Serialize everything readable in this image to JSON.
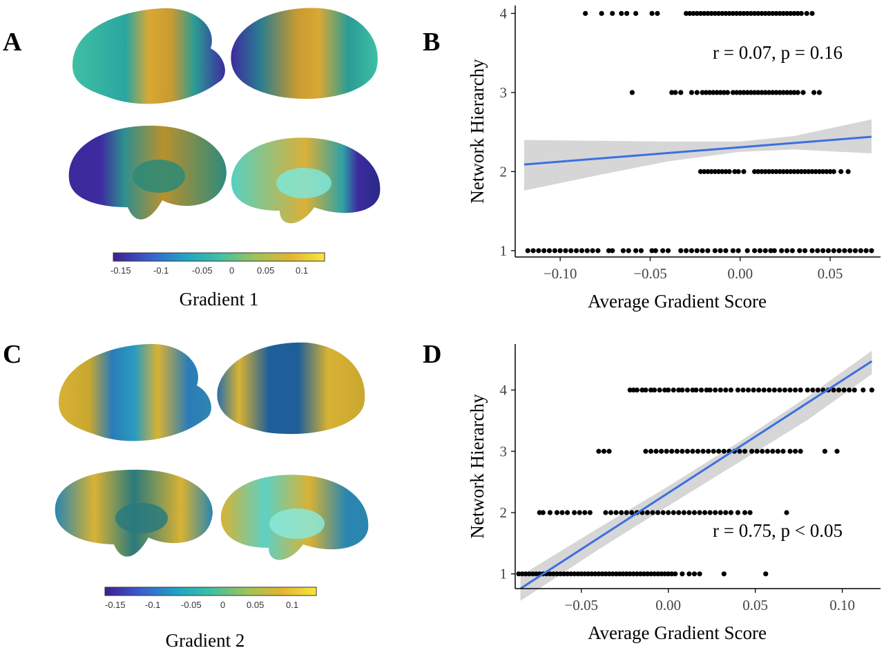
{
  "panels": {
    "A": {
      "label": "A"
    },
    "B": {
      "label": "B"
    },
    "C": {
      "label": "C"
    },
    "D": {
      "label": "D"
    }
  },
  "gradient1": {
    "title": "Gradient 1",
    "colorbar_ticks": [
      "-0.15",
      "-0.1",
      "-0.05",
      "0",
      "0.05",
      "0.1"
    ]
  },
  "gradient2": {
    "title": "Gradient 2",
    "colorbar_ticks": [
      "-0.15",
      "-0.1",
      "-0.05",
      "0",
      "0.05",
      "0.1"
    ]
  },
  "colors": {
    "points": "#000000",
    "fit_line": "#3b6fe0",
    "ci_band": "#cfcfcf",
    "viridis": [
      "#3e1f8f",
      "#3a5fcf",
      "#21a3c4",
      "#3fbfa5",
      "#9cc35a",
      "#e3b534",
      "#f6e83b"
    ]
  },
  "chart_data": [
    {
      "id": "B",
      "type": "scatter",
      "xlabel": "Average Gradient Score",
      "ylabel": "Network Hierarchy",
      "annotation": "r = 0.07, p = 0.16",
      "xlim": [
        -0.125,
        0.078
      ],
      "ylim": [
        0.92,
        4.1
      ],
      "xticks": [
        -0.1,
        -0.05,
        0.0,
        0.05
      ],
      "xtick_labels": [
        "−0.10",
        "−0.05",
        "0.00",
        "0.05"
      ],
      "yticks": [
        1,
        2,
        3,
        4
      ],
      "ytick_labels": [
        "1",
        "2",
        "3",
        "4"
      ],
      "grid": false,
      "fit": {
        "x": [
          -0.12,
          0.073
        ],
        "y": [
          2.09,
          2.44
        ]
      },
      "ci": {
        "x": [
          -0.12,
          -0.08,
          -0.04,
          0.0,
          0.03,
          0.073
        ],
        "upper": [
          2.4,
          2.39,
          2.38,
          2.38,
          2.45,
          2.66
        ],
        "lower": [
          1.76,
          1.95,
          2.13,
          2.25,
          2.28,
          2.23
        ]
      },
      "series": [
        {
          "y": 4,
          "x": [
            -0.086,
            -0.077,
            -0.071,
            -0.066,
            -0.063,
            -0.058,
            -0.049,
            -0.046,
            -0.03,
            -0.028,
            -0.026,
            -0.024,
            -0.022,
            -0.02,
            -0.018,
            -0.016,
            -0.014,
            -0.012,
            -0.01,
            -0.008,
            -0.006,
            -0.004,
            -0.002,
            0.0,
            0.002,
            0.004,
            0.006,
            0.008,
            0.01,
            0.012,
            0.014,
            0.016,
            0.018,
            0.02,
            0.022,
            0.024,
            0.026,
            0.028,
            0.03,
            0.032,
            0.034,
            0.037,
            0.04
          ]
        },
        {
          "y": 3,
          "x": [
            -0.06,
            -0.038,
            -0.036,
            -0.033,
            -0.027,
            -0.024,
            -0.021,
            -0.019,
            -0.017,
            -0.015,
            -0.013,
            -0.011,
            -0.009,
            -0.007,
            -0.004,
            -0.002,
            0.0,
            0.002,
            0.004,
            0.006,
            0.008,
            0.01,
            0.012,
            0.014,
            0.016,
            0.018,
            0.02,
            0.022,
            0.024,
            0.026,
            0.028,
            0.03,
            0.032,
            0.035,
            0.041,
            0.044
          ]
        },
        {
          "y": 2,
          "x": [
            -0.022,
            -0.02,
            -0.018,
            -0.016,
            -0.014,
            -0.012,
            -0.01,
            -0.008,
            -0.006,
            -0.003,
            -0.001,
            0.002,
            0.008,
            0.01,
            0.012,
            0.014,
            0.016,
            0.018,
            0.02,
            0.022,
            0.024,
            0.026,
            0.028,
            0.03,
            0.032,
            0.034,
            0.036,
            0.038,
            0.04,
            0.042,
            0.044,
            0.046,
            0.048,
            0.05,
            0.052,
            0.056,
            0.06
          ]
        },
        {
          "y": 1,
          "x": [
            -0.118,
            -0.115,
            -0.112,
            -0.109,
            -0.106,
            -0.103,
            -0.1,
            -0.097,
            -0.094,
            -0.091,
            -0.088,
            -0.085,
            -0.082,
            -0.079,
            -0.073,
            -0.071,
            -0.065,
            -0.062,
            -0.058,
            -0.055,
            -0.049,
            -0.047,
            -0.043,
            -0.04,
            -0.033,
            -0.03,
            -0.027,
            -0.024,
            -0.021,
            -0.018,
            -0.014,
            -0.011,
            -0.008,
            -0.004,
            -0.001,
            0.004,
            0.008,
            0.011,
            0.014,
            0.017,
            0.019,
            0.023,
            0.026,
            0.029,
            0.033,
            0.036,
            0.04,
            0.043,
            0.046,
            0.049,
            0.052,
            0.055,
            0.058,
            0.061,
            0.064,
            0.067,
            0.07,
            0.073
          ]
        }
      ]
    },
    {
      "id": "D",
      "type": "scatter",
      "xlabel": "Average Gradient Score",
      "ylabel": "Network Hierarchy",
      "annotation": "r = 0.75, p  < 0.05",
      "xlim": [
        -0.088,
        0.122
      ],
      "ylim": [
        0.76,
        4.75
      ],
      "xticks": [
        -0.05,
        0.0,
        0.05,
        0.1
      ],
      "xtick_labels": [
        "−0.05",
        "0.00",
        "0.05",
        "0.10"
      ],
      "yticks": [
        1,
        2,
        3,
        4
      ],
      "ytick_labels": [
        "1",
        "2",
        "3",
        "4"
      ],
      "grid": false,
      "fit": {
        "x": [
          -0.085,
          0.117
        ],
        "y": [
          0.76,
          4.47
        ]
      },
      "ci": {
        "x": [
          -0.085,
          -0.04,
          0.0,
          0.04,
          0.08,
          0.117
        ],
        "upper": [
          0.97,
          1.75,
          2.43,
          3.14,
          3.89,
          4.64
        ],
        "lower": [
          0.56,
          1.4,
          2.11,
          2.81,
          3.51,
          4.26
        ]
      },
      "series": [
        {
          "y": 4,
          "x": [
            -0.022,
            -0.02,
            -0.018,
            -0.015,
            -0.013,
            -0.01,
            -0.008,
            -0.005,
            -0.002,
            0.0,
            0.003,
            0.006,
            0.008,
            0.011,
            0.014,
            0.016,
            0.019,
            0.022,
            0.024,
            0.027,
            0.03,
            0.033,
            0.036,
            0.04,
            0.043,
            0.046,
            0.049,
            0.052,
            0.055,
            0.058,
            0.061,
            0.064,
            0.067,
            0.07,
            0.073,
            0.076,
            0.08,
            0.083,
            0.086,
            0.089,
            0.092,
            0.095,
            0.098,
            0.101,
            0.104,
            0.107,
            0.112,
            0.117
          ]
        },
        {
          "y": 3,
          "x": [
            -0.04,
            -0.037,
            -0.034,
            -0.013,
            -0.01,
            -0.007,
            -0.004,
            -0.001,
            0.002,
            0.005,
            0.008,
            0.011,
            0.014,
            0.017,
            0.02,
            0.023,
            0.026,
            0.029,
            0.032,
            0.035,
            0.038,
            0.041,
            0.044,
            0.048,
            0.051,
            0.054,
            0.057,
            0.06,
            0.063,
            0.066,
            0.07,
            0.073,
            0.076,
            0.09,
            0.097
          ]
        },
        {
          "y": 2,
          "x": [
            -0.074,
            -0.072,
            -0.068,
            -0.064,
            -0.061,
            -0.058,
            -0.054,
            -0.051,
            -0.048,
            -0.045,
            -0.036,
            -0.033,
            -0.03,
            -0.027,
            -0.024,
            -0.021,
            -0.018,
            -0.015,
            -0.012,
            -0.009,
            -0.006,
            -0.003,
            0.0,
            0.003,
            0.006,
            0.009,
            0.012,
            0.015,
            0.018,
            0.021,
            0.024,
            0.027,
            0.03,
            0.033,
            0.036,
            0.04,
            0.044,
            0.047,
            0.068
          ]
        },
        {
          "y": 1,
          "x": [
            -0.086,
            -0.084,
            -0.082,
            -0.08,
            -0.078,
            -0.076,
            -0.074,
            -0.072,
            -0.07,
            -0.068,
            -0.066,
            -0.064,
            -0.062,
            -0.06,
            -0.058,
            -0.056,
            -0.054,
            -0.052,
            -0.05,
            -0.048,
            -0.046,
            -0.044,
            -0.042,
            -0.04,
            -0.038,
            -0.036,
            -0.034,
            -0.032,
            -0.03,
            -0.028,
            -0.026,
            -0.024,
            -0.022,
            -0.02,
            -0.018,
            -0.016,
            -0.014,
            -0.012,
            -0.01,
            -0.008,
            -0.006,
            -0.004,
            -0.002,
            0.0,
            0.002,
            0.004,
            0.008,
            0.012,
            0.015,
            0.018,
            0.032,
            0.056
          ]
        }
      ]
    }
  ]
}
